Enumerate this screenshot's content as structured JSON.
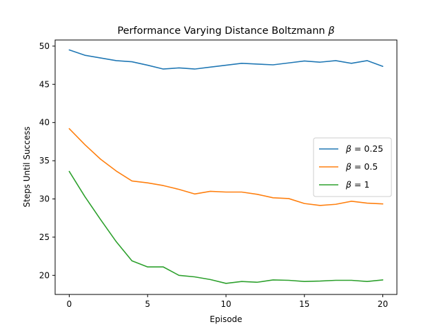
{
  "chart_data": {
    "type": "line",
    "title_prefix": "Performance Varying Distance Boltzmann ",
    "title_symbol": "β",
    "xlabel": "Episode",
    "ylabel": "Steps Until Success",
    "xlim": [
      -0.9,
      20.9
    ],
    "ylim": [
      17.5,
      50.8
    ],
    "xticks": [
      0,
      5,
      10,
      15,
      20
    ],
    "yticks": [
      20,
      25,
      30,
      35,
      40,
      45,
      50
    ],
    "grid": false,
    "legend_position": "center-right",
    "x": [
      0,
      1,
      2,
      3,
      4,
      5,
      6,
      7,
      8,
      9,
      10,
      11,
      12,
      13,
      14,
      15,
      16,
      17,
      18,
      19,
      20
    ],
    "series": [
      {
        "name_symbol": "β",
        "name_suffix": " = 0.25",
        "color": "#1f77b4",
        "values": [
          49.5,
          48.8,
          48.45,
          48.1,
          47.95,
          47.5,
          47.0,
          47.15,
          47.0,
          47.25,
          47.5,
          47.75,
          47.65,
          47.55,
          47.8,
          48.05,
          47.9,
          48.1,
          47.75,
          48.1,
          47.35
        ]
      },
      {
        "name_symbol": "β",
        "name_suffix": " = 0.5",
        "color": "#ff7f0e",
        "values": [
          39.2,
          37.1,
          35.2,
          33.65,
          32.35,
          32.1,
          31.75,
          31.25,
          30.65,
          31.0,
          30.9,
          30.9,
          30.6,
          30.15,
          30.05,
          29.4,
          29.15,
          29.3,
          29.7,
          29.45,
          29.35
        ]
      },
      {
        "name_symbol": "β",
        "name_suffix": " = 1",
        "color": "#2ca02c",
        "values": [
          33.6,
          30.3,
          27.3,
          24.4,
          21.9,
          21.1,
          21.1,
          20.0,
          19.8,
          19.45,
          18.95,
          19.2,
          19.1,
          19.4,
          19.35,
          19.2,
          19.25,
          19.35,
          19.35,
          19.2,
          19.4
        ]
      }
    ]
  }
}
